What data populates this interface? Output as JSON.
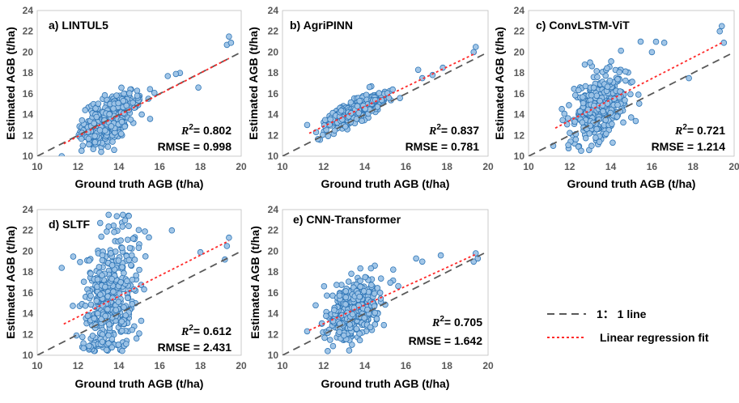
{
  "legend": {
    "one_to_one_label": "1： 1 line",
    "regression_label": "Linear regression fit",
    "one_to_one_color": "#595959",
    "regression_color": "#ff2a2a"
  },
  "style": {
    "point_fill": "#9dc3e6",
    "point_stroke": "#2e75b6"
  },
  "chart_data": [
    {
      "type": "scatter",
      "title": "a) LINTUL5",
      "xlabel": "Ground truth AGB (t/ha)",
      "ylabel": "Estimated AGB (t/ha)",
      "xlim": [
        10,
        20
      ],
      "ylim": [
        10,
        24
      ],
      "xticks": [
        10,
        12,
        14,
        16,
        18,
        20
      ],
      "yticks": [
        10,
        12,
        14,
        16,
        18,
        20,
        22,
        24
      ],
      "r2": "0.802",
      "rmse": "0.998",
      "stats": {
        "r2_prefix": "R",
        "r2_exp": "2",
        "r2_text": "= 0.802",
        "rmse_text": "RMSE = 0.998"
      },
      "regression_line": [
        [
          11.3,
          11.2
        ],
        [
          19.4,
          19.4
        ]
      ],
      "spread": {
        "center_x": 13.5,
        "sd_x": 0.65,
        "sd_y": 1.0,
        "n": 430,
        "seed": 11
      },
      "extra_points": [
        [
          11.2,
          10.0
        ],
        [
          19.4,
          21.5
        ],
        [
          19.3,
          20.7
        ],
        [
          19.5,
          20.9
        ],
        [
          17.0,
          18.0
        ],
        [
          16.8,
          17.9
        ],
        [
          16.4,
          17.7
        ],
        [
          17.9,
          16.6
        ]
      ]
    },
    {
      "type": "scatter",
      "title": "b) AgriPINN",
      "xlabel": "Ground truth AGB (t/ha)",
      "ylabel": "Estimated AGB (t/ha)",
      "xlim": [
        10,
        20
      ],
      "ylim": [
        10,
        24
      ],
      "xticks": [
        10,
        12,
        14,
        16,
        18,
        20
      ],
      "yticks": [
        10,
        12,
        14,
        16,
        18,
        20,
        22,
        24
      ],
      "r2": "0.837",
      "rmse": "0.781",
      "stats": {
        "r2_prefix": "R",
        "r2_exp": "2",
        "r2_text": "= 0.837",
        "rmse_text": "RMSE = 0.781"
      },
      "regression_line": [
        [
          11.3,
          12.2
        ],
        [
          19.4,
          19.9
        ]
      ],
      "spread": {
        "center_x": 13.5,
        "sd_x": 0.65,
        "sd_y": 0.5,
        "n": 430,
        "seed": 23
      },
      "extra_points": [
        [
          11.2,
          13.0
        ],
        [
          19.4,
          20.5
        ],
        [
          19.3,
          20.0
        ],
        [
          16.6,
          18.3
        ],
        [
          16.8,
          17.5
        ],
        [
          17.8,
          18.5
        ],
        [
          17.3,
          17.8
        ]
      ]
    },
    {
      "type": "scatter",
      "title": "c) ConvLSTM-ViT",
      "xlabel": "Ground truth AGB (t/ha)",
      "ylabel": "Estimated AGB (t/ha)",
      "xlim": [
        10,
        20
      ],
      "ylim": [
        10,
        24
      ],
      "xticks": [
        10,
        12,
        14,
        16,
        18,
        20
      ],
      "yticks": [
        10,
        12,
        14,
        16,
        18,
        20,
        22,
        24
      ],
      "r2": "0.721",
      "rmse": "1.214",
      "stats": {
        "r2_prefix": "R",
        "r2_exp": "2",
        "r2_text": "= 0.721",
        "rmse_text": "RMSE = 1.214"
      },
      "regression_line": [
        [
          11.3,
          12.7
        ],
        [
          19.4,
          20.9
        ]
      ],
      "spread": {
        "center_x": 13.5,
        "sd_x": 0.65,
        "sd_y": 1.5,
        "n": 430,
        "seed": 37
      },
      "extra_points": [
        [
          11.2,
          11.0
        ],
        [
          19.4,
          22.5
        ],
        [
          19.3,
          22.0
        ],
        [
          19.5,
          20.9
        ],
        [
          16.2,
          21.0
        ],
        [
          16.6,
          20.9
        ],
        [
          17.8,
          17.5
        ],
        [
          16.0,
          20.0
        ]
      ]
    },
    {
      "type": "scatter",
      "title": "d) SLTF",
      "xlabel": "Ground truth AGB (t/ha)",
      "ylabel": "Estimated AGB (t/ha)",
      "xlim": [
        10,
        20
      ],
      "ylim": [
        10,
        24
      ],
      "xticks": [
        10,
        12,
        14,
        16,
        18,
        20
      ],
      "yticks": [
        10,
        12,
        14,
        16,
        18,
        20,
        22,
        24
      ],
      "r2": "0.612",
      "rmse": "2.431",
      "stats": {
        "r2_prefix": "R",
        "r2_exp": "2",
        "r2_text": "= 0.612",
        "rmse_text": "RMSE = 2.431"
      },
      "regression_line": [
        [
          11.3,
          13.0
        ],
        [
          19.4,
          21.0
        ]
      ],
      "spread": {
        "center_x": 13.5,
        "sd_x": 0.65,
        "sd_y": 3.0,
        "n": 430,
        "seed": 53
      },
      "extra_points": [
        [
          11.2,
          18.4
        ],
        [
          19.4,
          21.3
        ],
        [
          19.3,
          20.5
        ],
        [
          19.2,
          19.2
        ],
        [
          13.5,
          23.5
        ],
        [
          14.2,
          23.5
        ],
        [
          16.6,
          22.0
        ],
        [
          18.0,
          19.9
        ]
      ]
    },
    {
      "type": "scatter",
      "title": "e) CNN-Transformer",
      "xlabel": "Ground truth AGB (t/ha)",
      "ylabel": "Estimated AGB (t/ha)",
      "xlim": [
        10,
        20
      ],
      "ylim": [
        10,
        24
      ],
      "xticks": [
        10,
        12,
        14,
        16,
        18,
        20
      ],
      "yticks": [
        10,
        12,
        14,
        16,
        18,
        20,
        22,
        24
      ],
      "r2": "0.705",
      "rmse": "1.642",
      "stats": {
        "r2_prefix": "R",
        "r2_exp": "2",
        "r2_text": "= 0.705",
        "rmse_text": "RMSE = 1.642"
      },
      "regression_line": [
        [
          11.3,
          12.4
        ],
        [
          19.4,
          19.7
        ]
      ],
      "spread": {
        "center_x": 13.5,
        "sd_x": 0.65,
        "sd_y": 1.3,
        "n": 430,
        "seed": 71
      },
      "extra_points": [
        [
          11.2,
          12.3
        ],
        [
          19.4,
          19.8
        ],
        [
          19.3,
          19.0
        ],
        [
          19.5,
          19.3
        ],
        [
          16.5,
          19.3
        ],
        [
          16.8,
          19.0
        ],
        [
          17.7,
          19.6
        ],
        [
          12.2,
          10.4
        ]
      ]
    }
  ]
}
